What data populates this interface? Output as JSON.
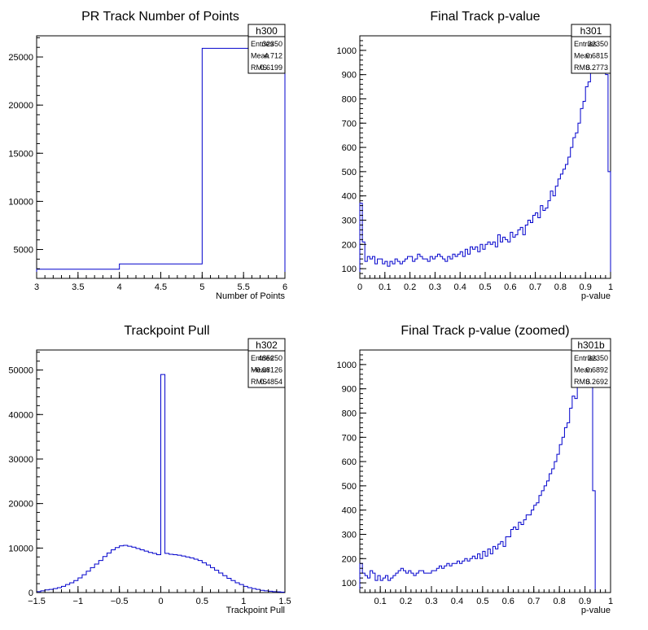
{
  "chart_data": [
    {
      "type": "histogram",
      "title": "PR Track Number of Points",
      "xlabel": "Number of Points",
      "xlim": [
        3,
        6
      ],
      "ylim": [
        2000,
        27200
      ],
      "xticks": [
        "3",
        "3.5",
        "4",
        "4.5",
        "5",
        "5.5",
        "6"
      ],
      "yticks": [
        "5000",
        "10000",
        "15000",
        "20000",
        "25000"
      ],
      "color": "#0000cc",
      "stats": {
        "name": "h300",
        "rows": [
          [
            "Entries",
            "32350"
          ],
          [
            "Mean",
            "4.712"
          ],
          [
            "RMS",
            "0.6199"
          ]
        ]
      },
      "bins": {
        "edges": [
          3,
          4,
          5,
          6
        ],
        "counts": [
          2950,
          3500,
          25900
        ]
      }
    },
    {
      "type": "histogram",
      "title": "Final Track p-value",
      "xlabel": "p-value",
      "xlim": [
        0,
        1
      ],
      "ylim": [
        60,
        1060
      ],
      "xticks": [
        "0",
        "0.1",
        "0.2",
        "0.3",
        "0.4",
        "0.5",
        "0.6",
        "0.7",
        "0.8",
        "0.9",
        "1"
      ],
      "yticks": [
        "100",
        "200",
        "300",
        "400",
        "500",
        "600",
        "700",
        "800",
        "900",
        "1000"
      ],
      "color": "#0000cc",
      "stats": {
        "name": "h301",
        "rows": [
          [
            "Entries",
            "32350"
          ],
          [
            "Mean",
            "0.6815"
          ],
          [
            "RMS",
            "0.2773"
          ]
        ]
      },
      "bins": {
        "start": 0,
        "width": 0.01,
        "counts": [
          370,
          210,
          130,
          150,
          140,
          150,
          120,
          140,
          140,
          120,
          130,
          110,
          130,
          120,
          140,
          130,
          120,
          130,
          140,
          150,
          150,
          130,
          140,
          160,
          150,
          140,
          140,
          130,
          150,
          140,
          150,
          160,
          150,
          140,
          130,
          150,
          140,
          160,
          150,
          160,
          170,
          150,
          180,
          160,
          190,
          180,
          190,
          170,
          200,
          180,
          200,
          210,
          200,
          210,
          190,
          240,
          210,
          230,
          220,
          210,
          250,
          230,
          240,
          260,
          270,
          240,
          280,
          300,
          290,
          320,
          330,
          310,
          360,
          340,
          350,
          380,
          420,
          400,
          440,
          470,
          490,
          510,
          530,
          560,
          600,
          640,
          660,
          700,
          760,
          790,
          850,
          870,
          950,
          1010,
          1040,
          1010,
          1090,
          1100,
          900,
          500
        ]
      }
    },
    {
      "type": "histogram",
      "title": "Trackpoint Pull",
      "xlabel": "Trackpoint Pull",
      "xlim": [
        -1.5,
        1.5
      ],
      "ylim": [
        0,
        54500
      ],
      "xticks": [
        "−1.5",
        "−1",
        "−0.5",
        "0",
        "0.5",
        "1",
        "1.5"
      ],
      "yticks": [
        "0",
        "10000",
        "20000",
        "30000",
        "40000",
        "50000"
      ],
      "color": "#0000cc",
      "stats": {
        "name": "h302",
        "rows": [
          [
            "Entries",
            "485250"
          ],
          [
            "Mean",
            "−0.08126"
          ],
          [
            "RMS",
            "0.4854"
          ]
        ]
      },
      "bins": {
        "start": -1.5,
        "width": 0.05,
        "counts": [
          200,
          400,
          600,
          700,
          900,
          1100,
          1400,
          1800,
          2200,
          2700,
          3300,
          4000,
          4800,
          5600,
          6400,
          7200,
          8100,
          8900,
          9600,
          10100,
          10500,
          10600,
          10400,
          10200,
          9900,
          9600,
          9300,
          9000,
          8800,
          8500,
          49000,
          8800,
          8600,
          8500,
          8400,
          8200,
          8000,
          7800,
          7500,
          7200,
          6700,
          6200,
          5600,
          5000,
          4400,
          3800,
          3200,
          2700,
          2200,
          1800,
          1400,
          1100,
          900,
          700,
          500,
          400,
          300,
          200,
          150,
          100
        ]
      }
    },
    {
      "type": "histogram",
      "title": "Final Track p-value (zoomed)",
      "xlabel": "p-value",
      "xlim": [
        0.02,
        1
      ],
      "ylim": [
        60,
        1060
      ],
      "xticks": [
        "0.1",
        "0.2",
        "0.3",
        "0.4",
        "0.5",
        "0.6",
        "0.7",
        "0.8",
        "0.9",
        "1"
      ],
      "yticks": [
        "100",
        "200",
        "300",
        "400",
        "500",
        "600",
        "700",
        "800",
        "900",
        "1000"
      ],
      "color": "#0000cc",
      "stats": {
        "name": "h301b",
        "rows": [
          [
            "Entries",
            "32350"
          ],
          [
            "Mean",
            "0.6892"
          ],
          [
            "RMS",
            "0.2692"
          ]
        ]
      },
      "bins": {
        "start": 0.02,
        "width": 0.01,
        "counts": [
          180,
          140,
          130,
          120,
          150,
          140,
          110,
          130,
          110,
          120,
          130,
          110,
          120,
          130,
          140,
          150,
          160,
          150,
          140,
          150,
          140,
          130,
          140,
          150,
          150,
          140,
          140,
          140,
          150,
          150,
          160,
          170,
          160,
          170,
          180,
          170,
          180,
          180,
          190,
          180,
          190,
          200,
          190,
          200,
          210,
          200,
          220,
          200,
          230,
          210,
          240,
          220,
          250,
          240,
          260,
          270,
          250,
          290,
          290,
          320,
          330,
          320,
          350,
          340,
          360,
          380,
          380,
          400,
          420,
          430,
          460,
          480,
          500,
          520,
          550,
          570,
          600,
          630,
          670,
          700,
          740,
          760,
          820,
          870,
          860,
          920,
          1000,
          1040,
          1080,
          1060,
          1000,
          480
        ]
      }
    }
  ]
}
